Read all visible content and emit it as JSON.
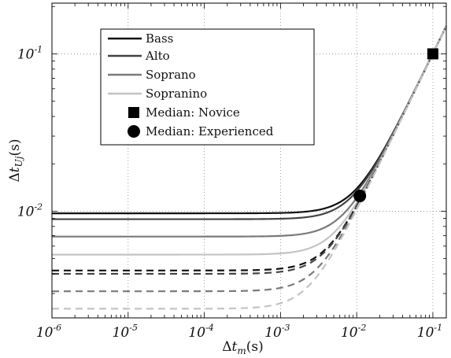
{
  "chart_data": {
    "type": "line",
    "xscale": "log",
    "yscale": "log",
    "xlim": [
      1e-06,
      0.15
    ],
    "ylim": [
      0.0021,
      0.21
    ],
    "grid": true,
    "legend_position": "top-left",
    "xlabel": "Δt_m(s)",
    "ylabel": "Δt_Uj(s)",
    "xticks": [
      {
        "value": 1e-06,
        "label": "10",
        "exp": "-6"
      },
      {
        "value": 1e-05,
        "label": "10",
        "exp": "-5"
      },
      {
        "value": 0.0001,
        "label": "10",
        "exp": "-4"
      },
      {
        "value": 0.001,
        "label": "10",
        "exp": "-3"
      },
      {
        "value": 0.01,
        "label": "10",
        "exp": "-2"
      },
      {
        "value": 0.1,
        "label": "10",
        "exp": "-1"
      }
    ],
    "yticks": [
      {
        "value": 0.01,
        "label": "10",
        "exp": "-2"
      },
      {
        "value": 0.1,
        "label": "10",
        "exp": "-1"
      }
    ],
    "series": [
      {
        "name": "Bass",
        "style": "solid",
        "color": "#111111",
        "floor": 0.0097
      },
      {
        "name": "Alto",
        "style": "solid",
        "color": "#444444",
        "floor": 0.0089
      },
      {
        "name": "Soprano",
        "style": "solid",
        "color": "#7a7a7a",
        "floor": 0.0069
      },
      {
        "name": "Sopranino",
        "style": "solid",
        "color": "#c4c4c4",
        "floor": 0.0053
      },
      {
        "style": "dashed",
        "color": "#111111",
        "floor": 0.0042
      },
      {
        "style": "dashed",
        "color": "#444444",
        "floor": 0.004
      },
      {
        "style": "dashed",
        "color": "#7a7a7a",
        "floor": 0.0031
      },
      {
        "style": "dashed",
        "color": "#c4c4c4",
        "floor": 0.0024
      }
    ],
    "markers": [
      {
        "name": "Median: Novice",
        "shape": "square",
        "x": 0.1,
        "y": 0.1
      },
      {
        "name": "Median: Experienced",
        "shape": "circle",
        "x": 0.011,
        "y": 0.0125
      }
    ]
  }
}
